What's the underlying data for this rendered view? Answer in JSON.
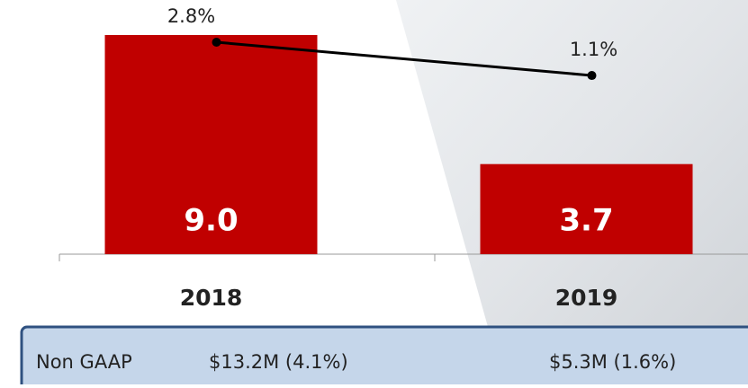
{
  "chart_data": {
    "type": "bar",
    "categories": [
      "2018",
      "2019"
    ],
    "series": [
      {
        "type": "bar",
        "color": "#c00000",
        "values": [
          9.0,
          3.7
        ],
        "value_labels": [
          "9.0",
          "3.7"
        ]
      },
      {
        "type": "line",
        "color": "#000000",
        "values": [
          2.8,
          1.1
        ],
        "value_labels": [
          "2.8%",
          "1.1%"
        ]
      }
    ]
  },
  "footer": {
    "label": "Non GAAP",
    "cells": [
      "$13.2M (4.1%)",
      "$5.3M (1.6%)"
    ]
  }
}
